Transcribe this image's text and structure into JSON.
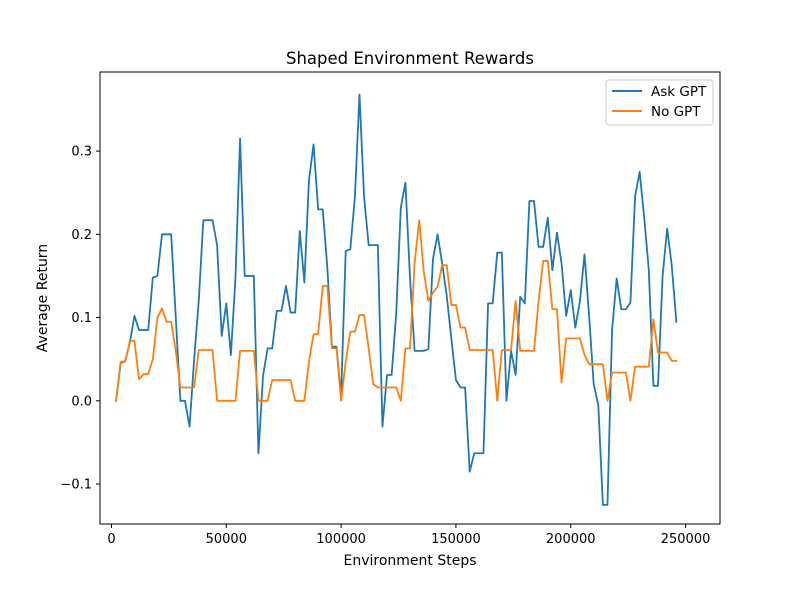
{
  "chart_data": {
    "type": "line",
    "title": "Shaped Environment Rewards",
    "xlabel": "Environment Steps",
    "ylabel": "Average Return",
    "xlim": [
      -5000,
      265000
    ],
    "ylim": [
      -0.148,
      0.395
    ],
    "xticks": [
      0,
      50000,
      100000,
      150000,
      200000,
      250000
    ],
    "yticks": [
      -0.1,
      0.0,
      0.1,
      0.2,
      0.3
    ],
    "xtick_labels": [
      "0",
      "50000",
      "100000",
      "150000",
      "200000",
      "250000"
    ],
    "ytick_labels": [
      "−0.1",
      "0.0",
      "0.1",
      "0.2",
      "0.3"
    ],
    "grid": false,
    "legend_position": "upper right",
    "series": [
      {
        "name": "Ask GPT",
        "color": "#1f77b4",
        "points": [
          [
            2000,
            0.0
          ],
          [
            4000,
            0.045
          ],
          [
            6000,
            0.048
          ],
          [
            8000,
            0.07
          ],
          [
            10000,
            0.102
          ],
          [
            12000,
            0.085
          ],
          [
            14000,
            0.085
          ],
          [
            16000,
            0.085
          ],
          [
            18000,
            0.148
          ],
          [
            20000,
            0.15
          ],
          [
            22000,
            0.2
          ],
          [
            24000,
            0.2
          ],
          [
            26000,
            0.2
          ],
          [
            28000,
            0.1
          ],
          [
            30000,
            0.0
          ],
          [
            32000,
            0.0
          ],
          [
            34000,
            -0.031
          ],
          [
            36000,
            0.05
          ],
          [
            38000,
            0.12
          ],
          [
            40000,
            0.217
          ],
          [
            42000,
            0.217
          ],
          [
            44000,
            0.217
          ],
          [
            46000,
            0.187
          ],
          [
            48000,
            0.078
          ],
          [
            50000,
            0.117
          ],
          [
            52000,
            0.055
          ],
          [
            54000,
            0.148
          ],
          [
            56000,
            0.315
          ],
          [
            58000,
            0.15
          ],
          [
            60000,
            0.15
          ],
          [
            62000,
            0.15
          ],
          [
            64000,
            -0.063
          ],
          [
            66000,
            0.03
          ],
          [
            68000,
            0.063
          ],
          [
            70000,
            0.063
          ],
          [
            72000,
            0.108
          ],
          [
            74000,
            0.108
          ],
          [
            76000,
            0.138
          ],
          [
            78000,
            0.106
          ],
          [
            80000,
            0.106
          ],
          [
            82000,
            0.204
          ],
          [
            84000,
            0.142
          ],
          [
            86000,
            0.265
          ],
          [
            88000,
            0.308
          ],
          [
            90000,
            0.23
          ],
          [
            92000,
            0.23
          ],
          [
            94000,
            0.16
          ],
          [
            96000,
            0.065
          ],
          [
            98000,
            0.065
          ],
          [
            100000,
            0.005
          ],
          [
            102000,
            0.18
          ],
          [
            104000,
            0.182
          ],
          [
            106000,
            0.245
          ],
          [
            108000,
            0.368
          ],
          [
            110000,
            0.245
          ],
          [
            112000,
            0.187
          ],
          [
            114000,
            0.187
          ],
          [
            116000,
            0.187
          ],
          [
            118000,
            -0.031
          ],
          [
            120000,
            0.031
          ],
          [
            122000,
            0.031
          ],
          [
            124000,
            0.105
          ],
          [
            126000,
            0.232
          ],
          [
            128000,
            0.262
          ],
          [
            130000,
            0.148
          ],
          [
            132000,
            0.06
          ],
          [
            134000,
            0.06
          ],
          [
            136000,
            0.06
          ],
          [
            138000,
            0.062
          ],
          [
            140000,
            0.17
          ],
          [
            142000,
            0.2
          ],
          [
            144000,
            0.165
          ],
          [
            146000,
            0.126
          ],
          [
            148000,
            0.075
          ],
          [
            150000,
            0.025
          ],
          [
            152000,
            0.016
          ],
          [
            154000,
            0.016
          ],
          [
            156000,
            -0.085
          ],
          [
            158000,
            -0.063
          ],
          [
            160000,
            -0.063
          ],
          [
            162000,
            -0.063
          ],
          [
            164000,
            0.117
          ],
          [
            166000,
            0.117
          ],
          [
            168000,
            0.178
          ],
          [
            170000,
            0.178
          ],
          [
            172000,
            0.0
          ],
          [
            174000,
            0.06
          ],
          [
            176000,
            0.031
          ],
          [
            178000,
            0.125
          ],
          [
            180000,
            0.117
          ],
          [
            182000,
            0.24
          ],
          [
            184000,
            0.24
          ],
          [
            186000,
            0.185
          ],
          [
            188000,
            0.185
          ],
          [
            190000,
            0.22
          ],
          [
            192000,
            0.157
          ],
          [
            194000,
            0.202
          ],
          [
            196000,
            0.165
          ],
          [
            198000,
            0.102
          ],
          [
            200000,
            0.133
          ],
          [
            202000,
            0.088
          ],
          [
            204000,
            0.12
          ],
          [
            206000,
            0.176
          ],
          [
            208000,
            0.102
          ],
          [
            210000,
            0.02
          ],
          [
            212000,
            -0.005
          ],
          [
            214000,
            -0.125
          ],
          [
            216000,
            -0.125
          ],
          [
            218000,
            0.085
          ],
          [
            220000,
            0.147
          ],
          [
            222000,
            0.11
          ],
          [
            224000,
            0.11
          ],
          [
            226000,
            0.118
          ],
          [
            228000,
            0.245
          ],
          [
            230000,
            0.275
          ],
          [
            232000,
            0.22
          ],
          [
            234000,
            0.157
          ],
          [
            236000,
            0.018
          ],
          [
            238000,
            0.018
          ],
          [
            240000,
            0.15
          ],
          [
            242000,
            0.207
          ],
          [
            244000,
            0.162
          ],
          [
            246000,
            0.095
          ]
        ]
      },
      {
        "name": "No GPT",
        "color": "#ff7f0e",
        "points": [
          [
            2000,
            0.0
          ],
          [
            4000,
            0.047
          ],
          [
            6000,
            0.047
          ],
          [
            8000,
            0.072
          ],
          [
            10000,
            0.072
          ],
          [
            12000,
            0.026
          ],
          [
            14000,
            0.032
          ],
          [
            16000,
            0.032
          ],
          [
            18000,
            0.05
          ],
          [
            20000,
            0.1
          ],
          [
            22000,
            0.111
          ],
          [
            24000,
            0.095
          ],
          [
            26000,
            0.095
          ],
          [
            28000,
            0.06
          ],
          [
            30000,
            0.016
          ],
          [
            32000,
            0.016
          ],
          [
            34000,
            0.016
          ],
          [
            36000,
            0.016
          ],
          [
            38000,
            0.061
          ],
          [
            40000,
            0.061
          ],
          [
            42000,
            0.061
          ],
          [
            44000,
            0.061
          ],
          [
            46000,
            0.0
          ],
          [
            48000,
            0.0
          ],
          [
            50000,
            0.0
          ],
          [
            52000,
            0.0
          ],
          [
            54000,
            0.0
          ],
          [
            56000,
            0.06
          ],
          [
            58000,
            0.06
          ],
          [
            60000,
            0.06
          ],
          [
            62000,
            0.06
          ],
          [
            64000,
            0.0
          ],
          [
            66000,
            0.0
          ],
          [
            68000,
            0.0
          ],
          [
            70000,
            0.025
          ],
          [
            72000,
            0.025
          ],
          [
            74000,
            0.025
          ],
          [
            76000,
            0.025
          ],
          [
            78000,
            0.025
          ],
          [
            80000,
            0.0
          ],
          [
            82000,
            0.0
          ],
          [
            84000,
            0.0
          ],
          [
            86000,
            0.047
          ],
          [
            88000,
            0.08
          ],
          [
            90000,
            0.08
          ],
          [
            92000,
            0.138
          ],
          [
            94000,
            0.138
          ],
          [
            96000,
            0.063
          ],
          [
            98000,
            0.063
          ],
          [
            100000,
            0.0
          ],
          [
            102000,
            0.047
          ],
          [
            104000,
            0.083
          ],
          [
            106000,
            0.083
          ],
          [
            108000,
            0.103
          ],
          [
            110000,
            0.103
          ],
          [
            112000,
            0.063
          ],
          [
            114000,
            0.02
          ],
          [
            116000,
            0.016
          ],
          [
            118000,
            0.016
          ],
          [
            120000,
            0.016
          ],
          [
            122000,
            0.016
          ],
          [
            124000,
            0.016
          ],
          [
            126000,
            0.0
          ],
          [
            128000,
            0.063
          ],
          [
            130000,
            0.063
          ],
          [
            132000,
            0.165
          ],
          [
            134000,
            0.217
          ],
          [
            136000,
            0.155
          ],
          [
            138000,
            0.12
          ],
          [
            140000,
            0.13
          ],
          [
            142000,
            0.137
          ],
          [
            144000,
            0.163
          ],
          [
            146000,
            0.163
          ],
          [
            148000,
            0.115
          ],
          [
            150000,
            0.115
          ],
          [
            152000,
            0.088
          ],
          [
            154000,
            0.088
          ],
          [
            156000,
            0.061
          ],
          [
            158000,
            0.061
          ],
          [
            160000,
            0.061
          ],
          [
            162000,
            0.061
          ],
          [
            164000,
            0.061
          ],
          [
            166000,
            0.061
          ],
          [
            168000,
            0.0
          ],
          [
            170000,
            0.061
          ],
          [
            172000,
            0.061
          ],
          [
            174000,
            0.061
          ],
          [
            176000,
            0.12
          ],
          [
            178000,
            0.06
          ],
          [
            180000,
            0.06
          ],
          [
            182000,
            0.06
          ],
          [
            184000,
            0.06
          ],
          [
            186000,
            0.12
          ],
          [
            188000,
            0.168
          ],
          [
            190000,
            0.168
          ],
          [
            192000,
            0.11
          ],
          [
            194000,
            0.11
          ],
          [
            196000,
            0.022
          ],
          [
            198000,
            0.075
          ],
          [
            200000,
            0.075
          ],
          [
            202000,
            0.075
          ],
          [
            204000,
            0.075
          ],
          [
            206000,
            0.055
          ],
          [
            208000,
            0.044
          ],
          [
            210000,
            0.044
          ],
          [
            212000,
            0.044
          ],
          [
            214000,
            0.044
          ],
          [
            216000,
            0.0
          ],
          [
            218000,
            0.034
          ],
          [
            220000,
            0.034
          ],
          [
            222000,
            0.034
          ],
          [
            224000,
            0.034
          ],
          [
            226000,
            0.0
          ],
          [
            228000,
            0.041
          ],
          [
            230000,
            0.041
          ],
          [
            232000,
            0.041
          ],
          [
            234000,
            0.041
          ],
          [
            236000,
            0.098
          ],
          [
            238000,
            0.058
          ],
          [
            240000,
            0.058
          ],
          [
            242000,
            0.058
          ],
          [
            244000,
            0.048
          ],
          [
            246000,
            0.048
          ]
        ]
      }
    ]
  }
}
